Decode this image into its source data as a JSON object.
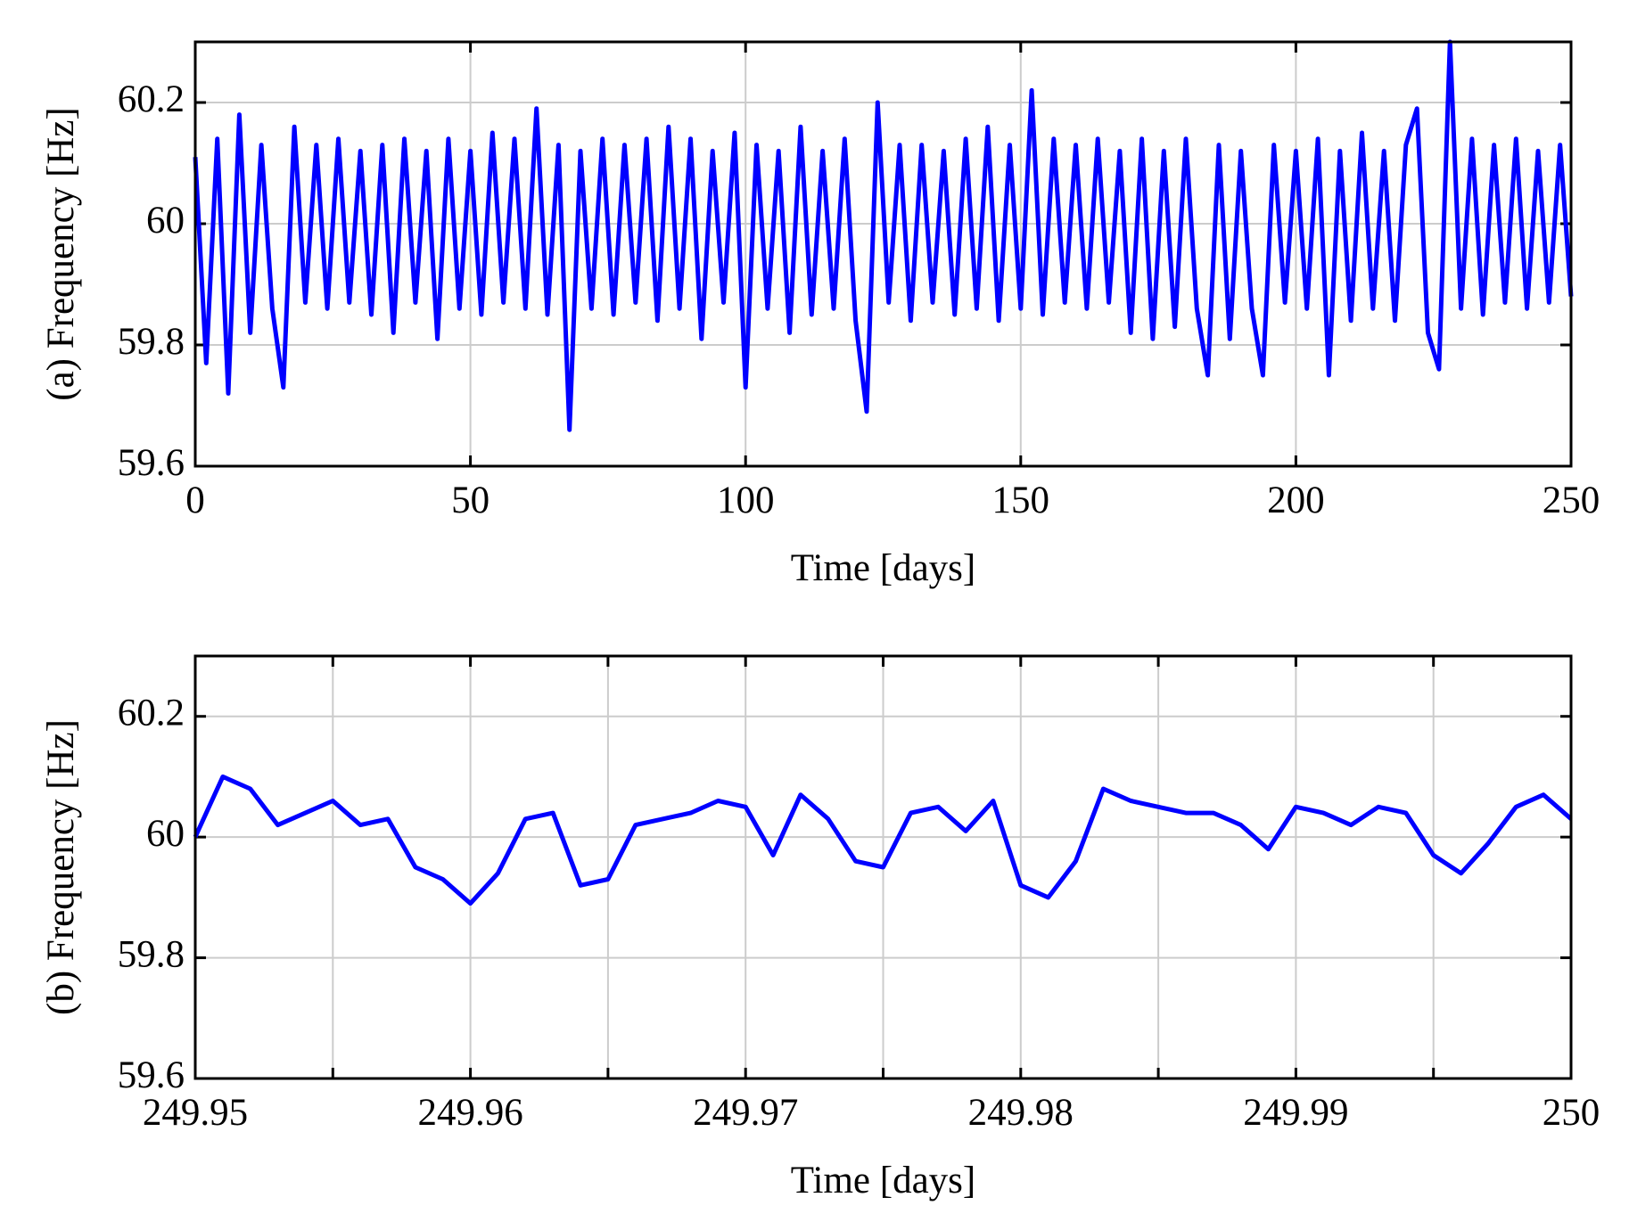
{
  "chart_data": [
    {
      "type": "line",
      "ylabel": "(a) Frequency [Hz]",
      "xlabel": "Time [days]",
      "xlim": [
        0,
        250
      ],
      "xticks": [
        0,
        50,
        100,
        150,
        200,
        250
      ],
      "ylim": [
        59.6,
        60.3
      ],
      "yticks": [
        59.6,
        59.8,
        60,
        60.2
      ],
      "grid": true,
      "x": [
        0,
        2,
        4,
        6,
        8,
        10,
        12,
        14,
        16,
        18,
        20,
        22,
        24,
        26,
        28,
        30,
        32,
        34,
        36,
        38,
        40,
        42,
        44,
        46,
        48,
        50,
        52,
        54,
        56,
        58,
        60,
        62,
        64,
        66,
        68,
        70,
        72,
        74,
        76,
        78,
        80,
        82,
        84,
        86,
        88,
        90,
        92,
        94,
        96,
        98,
        100,
        102,
        104,
        106,
        108,
        110,
        112,
        114,
        116,
        118,
        120,
        122,
        124,
        126,
        128,
        130,
        132,
        134,
        136,
        138,
        140,
        142,
        144,
        146,
        148,
        150,
        152,
        154,
        156,
        158,
        160,
        162,
        164,
        166,
        168,
        170,
        172,
        174,
        176,
        178,
        180,
        182,
        184,
        186,
        188,
        190,
        192,
        194,
        196,
        198,
        200,
        202,
        204,
        206,
        208,
        210,
        212,
        214,
        216,
        218,
        220,
        222,
        224,
        226,
        228,
        230,
        232,
        234,
        236,
        238,
        240,
        242,
        244,
        246,
        248,
        250
      ],
      "series": [
        {
          "color": "#0000ff",
          "values": [
            60.11,
            59.77,
            60.14,
            59.72,
            60.18,
            59.82,
            60.13,
            59.86,
            59.73,
            60.16,
            59.87,
            60.13,
            59.86,
            60.14,
            59.87,
            60.12,
            59.85,
            60.13,
            59.82,
            60.14,
            59.87,
            60.12,
            59.81,
            60.14,
            59.86,
            60.12,
            59.85,
            60.15,
            59.87,
            60.14,
            59.86,
            60.19,
            59.85,
            60.13,
            59.66,
            60.12,
            59.86,
            60.14,
            59.85,
            60.13,
            59.87,
            60.14,
            59.84,
            60.16,
            59.86,
            60.14,
            59.81,
            60.12,
            59.87,
            60.15,
            59.73,
            60.13,
            59.86,
            60.12,
            59.82,
            60.16,
            59.85,
            60.12,
            59.86,
            60.14,
            59.84,
            59.69,
            60.2,
            59.87,
            60.13,
            59.84,
            60.13,
            59.87,
            60.12,
            59.85,
            60.14,
            59.86,
            60.16,
            59.84,
            60.13,
            59.86,
            60.22,
            59.85,
            60.14,
            59.87,
            60.13,
            59.86,
            60.14,
            59.87,
            60.12,
            59.82,
            60.14,
            59.81,
            60.12,
            59.83,
            60.14,
            59.86,
            59.75,
            60.13,
            59.81,
            60.12,
            59.86,
            59.75,
            60.13,
            59.87,
            60.12,
            59.86,
            60.14,
            59.75,
            60.12,
            59.84,
            60.15,
            59.86,
            60.12,
            59.84,
            60.13,
            60.19,
            59.82,
            59.76,
            60.3,
            59.86,
            60.14,
            59.85,
            60.13,
            59.87,
            60.14,
            59.86,
            60.12,
            59.87,
            60.13,
            59.88
          ]
        }
      ]
    },
    {
      "type": "line",
      "ylabel": "(b) Frequency [Hz]",
      "xlabel": "Time [days]",
      "xlim": [
        249.95,
        250
      ],
      "xticks": [
        249.95,
        249.96,
        249.97,
        249.98,
        249.99,
        250
      ],
      "xminorticks": [
        249.955,
        249.965,
        249.975,
        249.985,
        249.995
      ],
      "ylim": [
        59.6,
        60.3
      ],
      "yticks": [
        59.6,
        59.8,
        60,
        60.2
      ],
      "grid": true,
      "x": [
        249.95,
        249.951,
        249.952,
        249.953,
        249.954,
        249.955,
        249.956,
        249.957,
        249.958,
        249.959,
        249.96,
        249.961,
        249.962,
        249.963,
        249.964,
        249.965,
        249.966,
        249.967,
        249.968,
        249.969,
        249.97,
        249.971,
        249.972,
        249.973,
        249.974,
        249.975,
        249.976,
        249.977,
        249.978,
        249.979,
        249.98,
        249.981,
        249.982,
        249.983,
        249.984,
        249.985,
        249.986,
        249.987,
        249.988,
        249.989,
        249.99,
        249.991,
        249.992,
        249.993,
        249.994,
        249.995,
        249.996,
        249.997,
        249.998,
        249.999,
        250
      ],
      "series": [
        {
          "color": "#0000ff",
          "values": [
            60,
            60.1,
            60.08,
            60.02,
            60.04,
            60.06,
            60.02,
            60.03,
            59.95,
            59.93,
            59.89,
            59.94,
            60.03,
            60.04,
            59.92,
            59.93,
            60.02,
            60.03,
            60.04,
            60.06,
            60.05,
            59.97,
            60.07,
            60.03,
            59.96,
            59.95,
            60.04,
            60.05,
            60.01,
            60.06,
            59.92,
            59.9,
            59.96,
            60.08,
            60.06,
            60.05,
            60.04,
            60.04,
            60.02,
            59.98,
            60.05,
            60.04,
            60.02,
            60.05,
            60.04,
            59.97,
            59.94,
            59.99,
            60.05,
            60.07,
            60.03
          ]
        }
      ]
    }
  ]
}
